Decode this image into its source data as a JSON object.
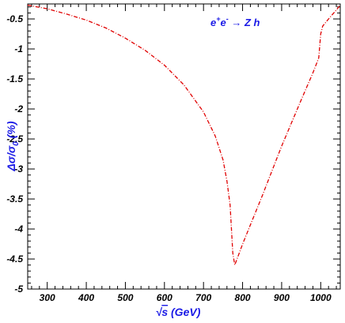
{
  "chart_data": {
    "type": "line",
    "xlim": [
      250,
      1050
    ],
    "ylim": [
      -5,
      -0.25
    ],
    "x_ticks": [
      300,
      400,
      500,
      600,
      700,
      800,
      900,
      1000
    ],
    "x_tick_labels": [
      "300",
      "400",
      "500",
      "600",
      "700",
      "800",
      "900",
      "1000"
    ],
    "y_ticks": [
      -0.5,
      -1,
      -1.5,
      -2,
      -2.5,
      -3,
      -3.5,
      -4,
      -4.5,
      -5
    ],
    "y_tick_labels": [
      "-0.5",
      "-1",
      "-1.5",
      "-2",
      "-2.5",
      "-3",
      "-3.5",
      "-4",
      "-4.5",
      "-5"
    ],
    "xlabel": {
      "sqrt": "√",
      "s": "s",
      "rest": " (GeV)"
    },
    "ylabel": {
      "delta": "Δσ/σ",
      "sub": "0",
      "rest": " (%)"
    },
    "annotation": {
      "e1": "e",
      "sup1": "+",
      "e2": "e",
      "sup2": "-",
      "arrow": " → ",
      "proc": "Z h"
    },
    "series": [
      {
        "color": "#e00000",
        "style": "dash-dot",
        "x": [
          250,
          300,
          350,
          400,
          450,
          500,
          550,
          600,
          650,
          700,
          730,
          750,
          760,
          768,
          775,
          780,
          800,
          850,
          900,
          950,
          980,
          995,
          1000,
          1005,
          1020,
          1040,
          1050
        ],
        "y": [
          -0.27,
          -0.33,
          -0.42,
          -0.52,
          -0.65,
          -0.82,
          -1.02,
          -1.27,
          -1.6,
          -2.05,
          -2.45,
          -2.85,
          -3.2,
          -3.6,
          -4.4,
          -4.6,
          -4.25,
          -3.45,
          -2.62,
          -1.85,
          -1.4,
          -1.15,
          -0.75,
          -0.62,
          -0.5,
          -0.35,
          -0.27
        ]
      }
    ]
  }
}
